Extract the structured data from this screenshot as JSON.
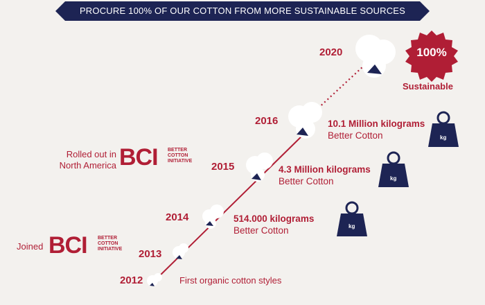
{
  "banner": {
    "title": "PROCURE 100% OF OUR COTTON FROM MORE SUSTAINABLE SOURCES"
  },
  "years": [
    "2012",
    "2013",
    "2014",
    "2015",
    "2016",
    "2020"
  ],
  "milestones": {
    "2012": {
      "text": "First organic cotton styles"
    },
    "2014": {
      "main": "514.000 kilograms",
      "sub": "Better Cotton"
    },
    "2015": {
      "main": "4.3 Million kilograms",
      "sub": "Better Cotton"
    },
    "2016": {
      "main": "10.1 Million kilograms",
      "sub": "Better Cotton"
    },
    "2020": {
      "badge": "100%",
      "caption": "Sustainable"
    }
  },
  "bci": {
    "mark": "BCI",
    "small_lines": [
      "BETTER",
      "COTTON",
      "INITIATIVE"
    ],
    "joined_label": "Joined",
    "rolled_out_line1": "Rolled out in",
    "rolled_out_line2": "North America"
  },
  "weight_icon_label": "kg",
  "colors": {
    "navy": "#1d2454",
    "red": "#b01e35",
    "background": "#f3f1ee"
  }
}
